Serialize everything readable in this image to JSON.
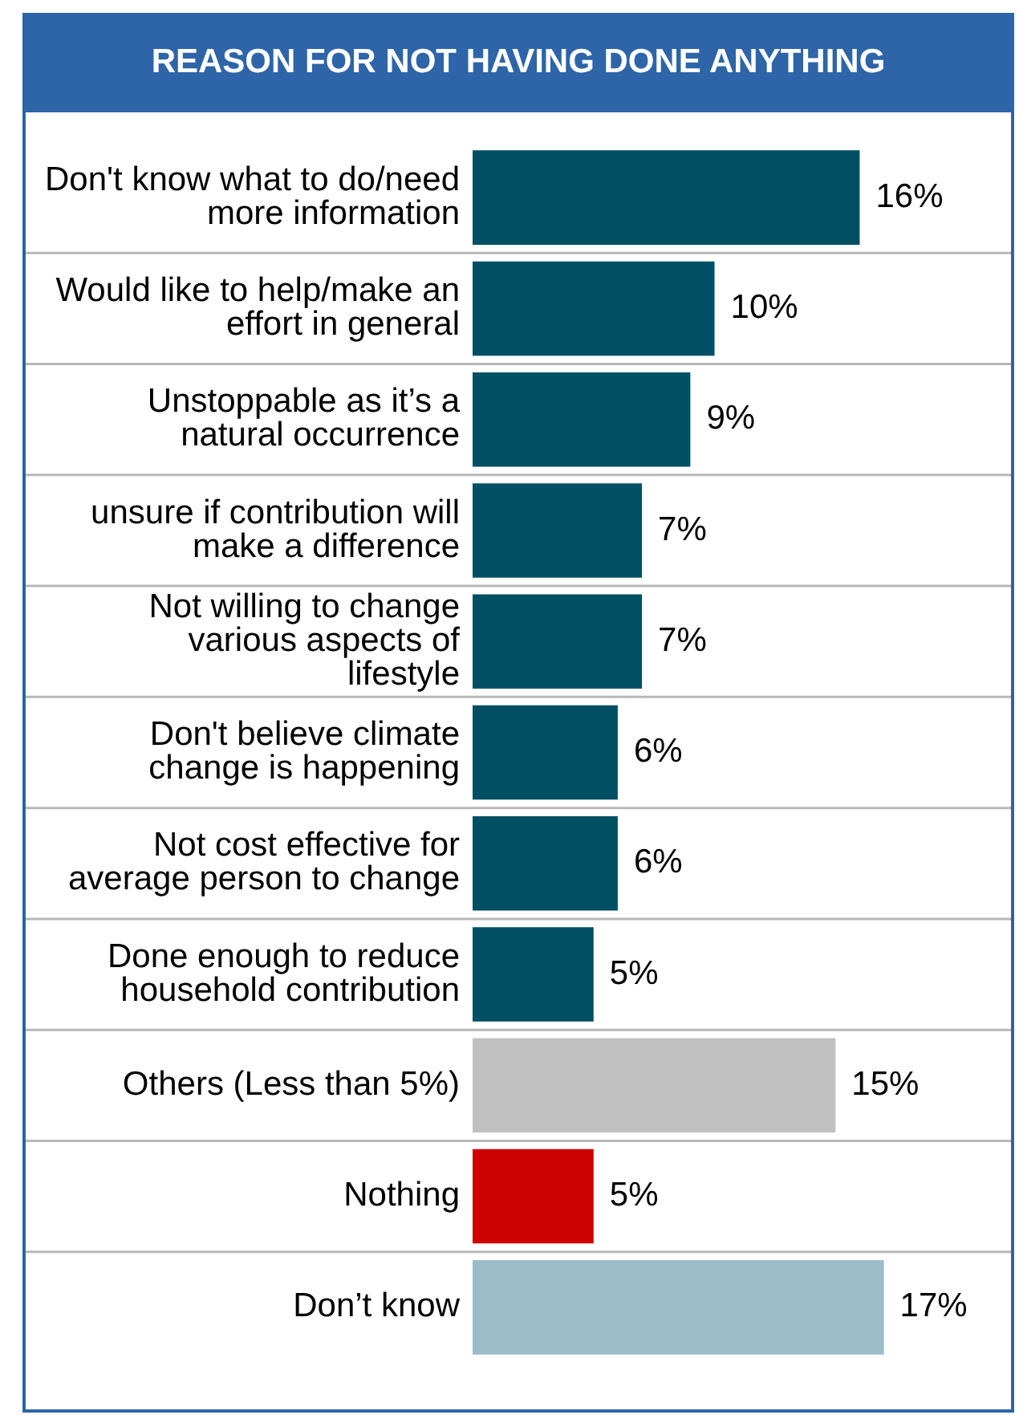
{
  "chart_data": {
    "type": "bar",
    "orientation": "horizontal",
    "title": "REASON FOR NOT HAVING DONE ANYTHING",
    "categories": [
      "Don't know what to do/need more information",
      "Would like to help/make an effort in general",
      "Unstoppable as it’s a natural occurrence",
      "unsure if contribution will make a difference",
      "Not willing to change various aspects of lifestyle",
      "Don't believe climate change is happening",
      "Not cost effective for average person to change",
      "Done enough to reduce household contribution",
      "Others (Less than 5%)",
      "Nothing",
      "Don’t know"
    ],
    "values": [
      16,
      10,
      9,
      7,
      7,
      6,
      6,
      5,
      15,
      5,
      17
    ],
    "colors": [
      "#004f63",
      "#004f63",
      "#004f63",
      "#004f63",
      "#004f63",
      "#004f63",
      "#004f63",
      "#004f63",
      "#c0c0c0",
      "#cc0000",
      "#9bbcc8"
    ],
    "value_labels": [
      "16%",
      "10%",
      "9%",
      "7%",
      "7%",
      "6%",
      "6%",
      "5%",
      "15%",
      "5%",
      "17%"
    ],
    "grid": "y",
    "tick_labels": "y"
  }
}
